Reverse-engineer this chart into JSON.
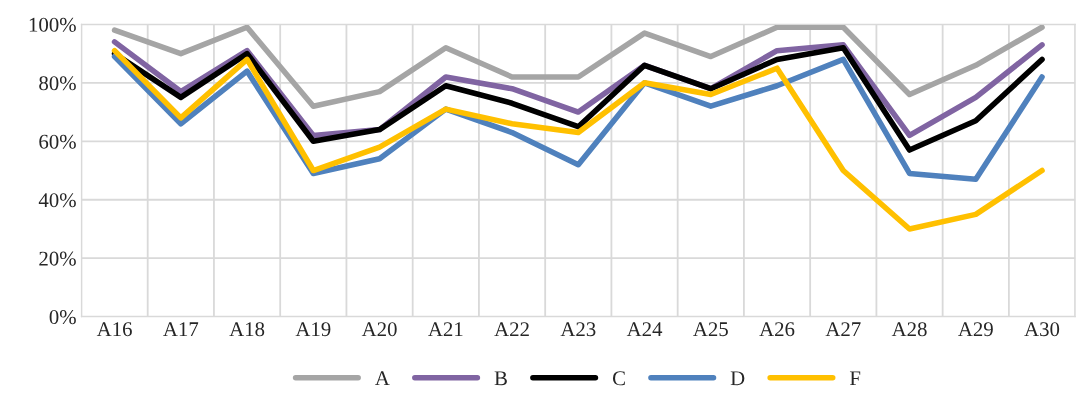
{
  "chart_data": {
    "type": "line",
    "categories": [
      "A16",
      "A17",
      "A18",
      "A19",
      "A20",
      "A21",
      "A22",
      "A23",
      "A24",
      "A25",
      "A26",
      "A27",
      "A28",
      "A29",
      "A30"
    ],
    "series": [
      {
        "name": "A",
        "color": "#a5a5a5",
        "values": [
          98,
          90,
          99,
          72,
          77,
          92,
          82,
          82,
          97,
          89,
          99,
          99,
          76,
          86,
          99
        ]
      },
      {
        "name": "B",
        "color": "#8064a2",
        "values": [
          94,
          77,
          91,
          62,
          64,
          82,
          78,
          70,
          86,
          78,
          91,
          93,
          62,
          75,
          93
        ]
      },
      {
        "name": "C",
        "color": "#000000",
        "values": [
          90,
          75,
          90,
          60,
          64,
          79,
          73,
          65,
          86,
          78,
          88,
          92,
          57,
          67,
          88
        ]
      },
      {
        "name": "D",
        "color": "#4f81bd",
        "values": [
          89,
          66,
          84,
          49,
          54,
          71,
          63,
          52,
          80,
          72,
          79,
          88,
          49,
          47,
          82
        ]
      },
      {
        "name": "F",
        "color": "#ffc000",
        "values": [
          91,
          68,
          88,
          50,
          58,
          71,
          66,
          63,
          80,
          76,
          85,
          50,
          30,
          35,
          50
        ]
      }
    ],
    "ylim": [
      0,
      100
    ],
    "yticks": [
      {
        "value": 0,
        "label": "0%"
      },
      {
        "value": 20,
        "label": "20%"
      },
      {
        "value": 40,
        "label": "40%"
      },
      {
        "value": 60,
        "label": "60%"
      },
      {
        "value": 80,
        "label": "80%"
      },
      {
        "value": 100,
        "label": "100%"
      }
    ],
    "grid": true,
    "legend": "bottom",
    "marker": "none",
    "line_style": "solid"
  }
}
